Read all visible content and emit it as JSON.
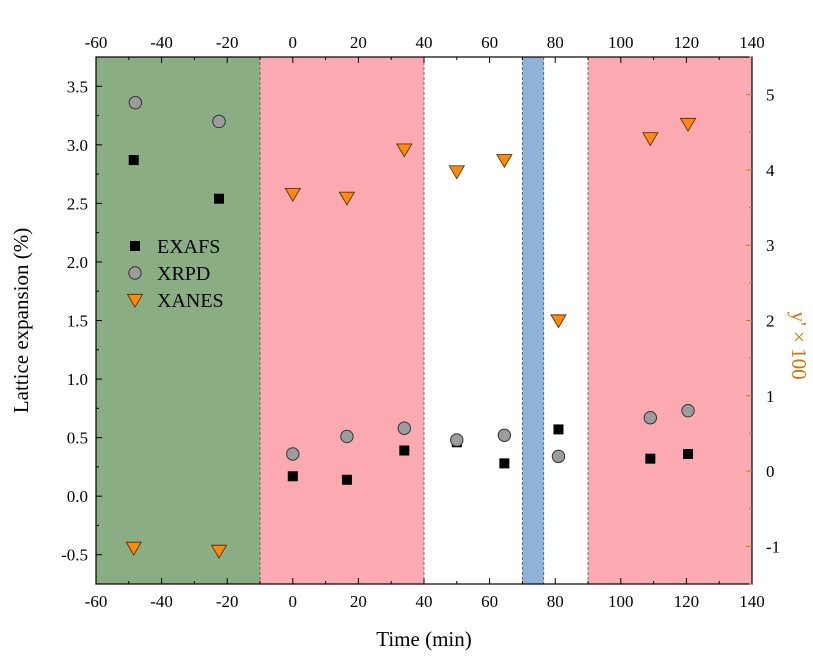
{
  "chart_data": {
    "type": "scatter",
    "xlabel": "Time (min)",
    "ylabel": "Lattice expansion (%)",
    "ylabel_right": "y' × 100",
    "xlim": [
      -60,
      140
    ],
    "ylim": [
      -0.75,
      3.75
    ],
    "ylim_right": [
      -1.5,
      5.5
    ],
    "x_ticks": [
      "-60",
      "-40",
      "-20",
      "0",
      "20",
      "40",
      "60",
      "80",
      "100",
      "120",
      "140"
    ],
    "y_ticks": [
      "-0.5",
      "0.0",
      "0.5",
      "1.0",
      "1.5",
      "2.0",
      "2.5",
      "3.0",
      "3.5"
    ],
    "y_right_ticks": [
      "-1",
      "0",
      "1",
      "2",
      "3",
      "4",
      "5"
    ],
    "regions": [
      {
        "start": -60,
        "end": -10,
        "color": "#8aad84"
      },
      {
        "start": -10,
        "end": 40,
        "color": "#fbaab2"
      },
      {
        "start": 70,
        "end": 76.5,
        "color": "#8fb2d8"
      },
      {
        "start": 90,
        "end": 140,
        "color": "#fbaab2"
      }
    ],
    "series": [
      {
        "name": "EXAFS",
        "marker": "square",
        "color": "#000000",
        "axis": "left",
        "points": [
          [
            -48.5,
            2.87
          ],
          [
            -22.5,
            2.54
          ],
          [
            0,
            0.17
          ],
          [
            16.5,
            0.14
          ],
          [
            34,
            0.39
          ],
          [
            50,
            0.46
          ],
          [
            64.5,
            0.28
          ],
          [
            81,
            0.57
          ],
          [
            109,
            0.32
          ],
          [
            120.5,
            0.36
          ]
        ]
      },
      {
        "name": "XRPD",
        "marker": "circle",
        "color": "#9c9c9c",
        "axis": "left",
        "points": [
          [
            -48,
            3.36
          ],
          [
            -22.5,
            3.2
          ],
          [
            0,
            0.36
          ],
          [
            16.5,
            0.51
          ],
          [
            34,
            0.58
          ],
          [
            50,
            0.48
          ],
          [
            64.5,
            0.52
          ],
          [
            81,
            0.34
          ],
          [
            109,
            0.67
          ],
          [
            120.5,
            0.73
          ]
        ]
      },
      {
        "name": "XANES",
        "marker": "triangle-down",
        "color": "#ff8a12",
        "axis": "right",
        "points": [
          [
            -48.5,
            -1.02
          ],
          [
            -22.5,
            -1.06
          ],
          [
            0,
            3.68
          ],
          [
            16.5,
            3.63
          ],
          [
            34,
            4.27
          ],
          [
            50,
            3.98
          ],
          [
            64.5,
            4.13
          ],
          [
            81,
            2.0
          ],
          [
            109,
            4.42
          ],
          [
            120.5,
            4.61
          ]
        ]
      }
    ],
    "legend_position": "left"
  }
}
